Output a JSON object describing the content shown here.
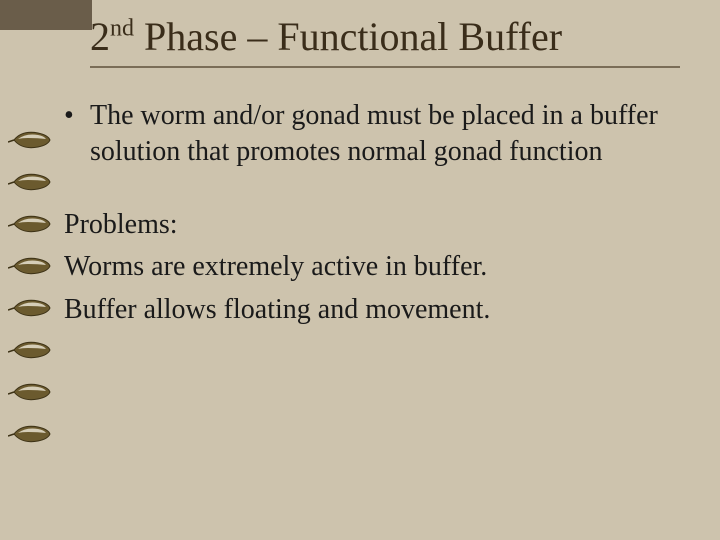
{
  "background_color": "#cdc3ad",
  "corner_tab_color": "#6a5d4a",
  "rule_color": "#7a6d57",
  "title_color": "#3a2d1a",
  "text_color": "#1a1a1a",
  "title_fontsize": 40,
  "body_fontsize": 28,
  "title_prefix": "2",
  "title_super": "nd",
  "title_rest": " Phase – Functional Buffer",
  "bullet_symbol": "•",
  "bullet_text": "The worm and/or gonad must be placed in a buffer solution that promotes normal gonad function",
  "problems_heading": "Problems:",
  "problems_line1": "Worms are extremely active in buffer.",
  "problems_line2": "Buffer allows floating and movement.",
  "leaf": {
    "count": 8,
    "body_fill": "#6b5a2e",
    "body_stroke": "#3c3115",
    "highlight_fill": "#e8e2cf",
    "stem_stroke": "#3c3115"
  }
}
